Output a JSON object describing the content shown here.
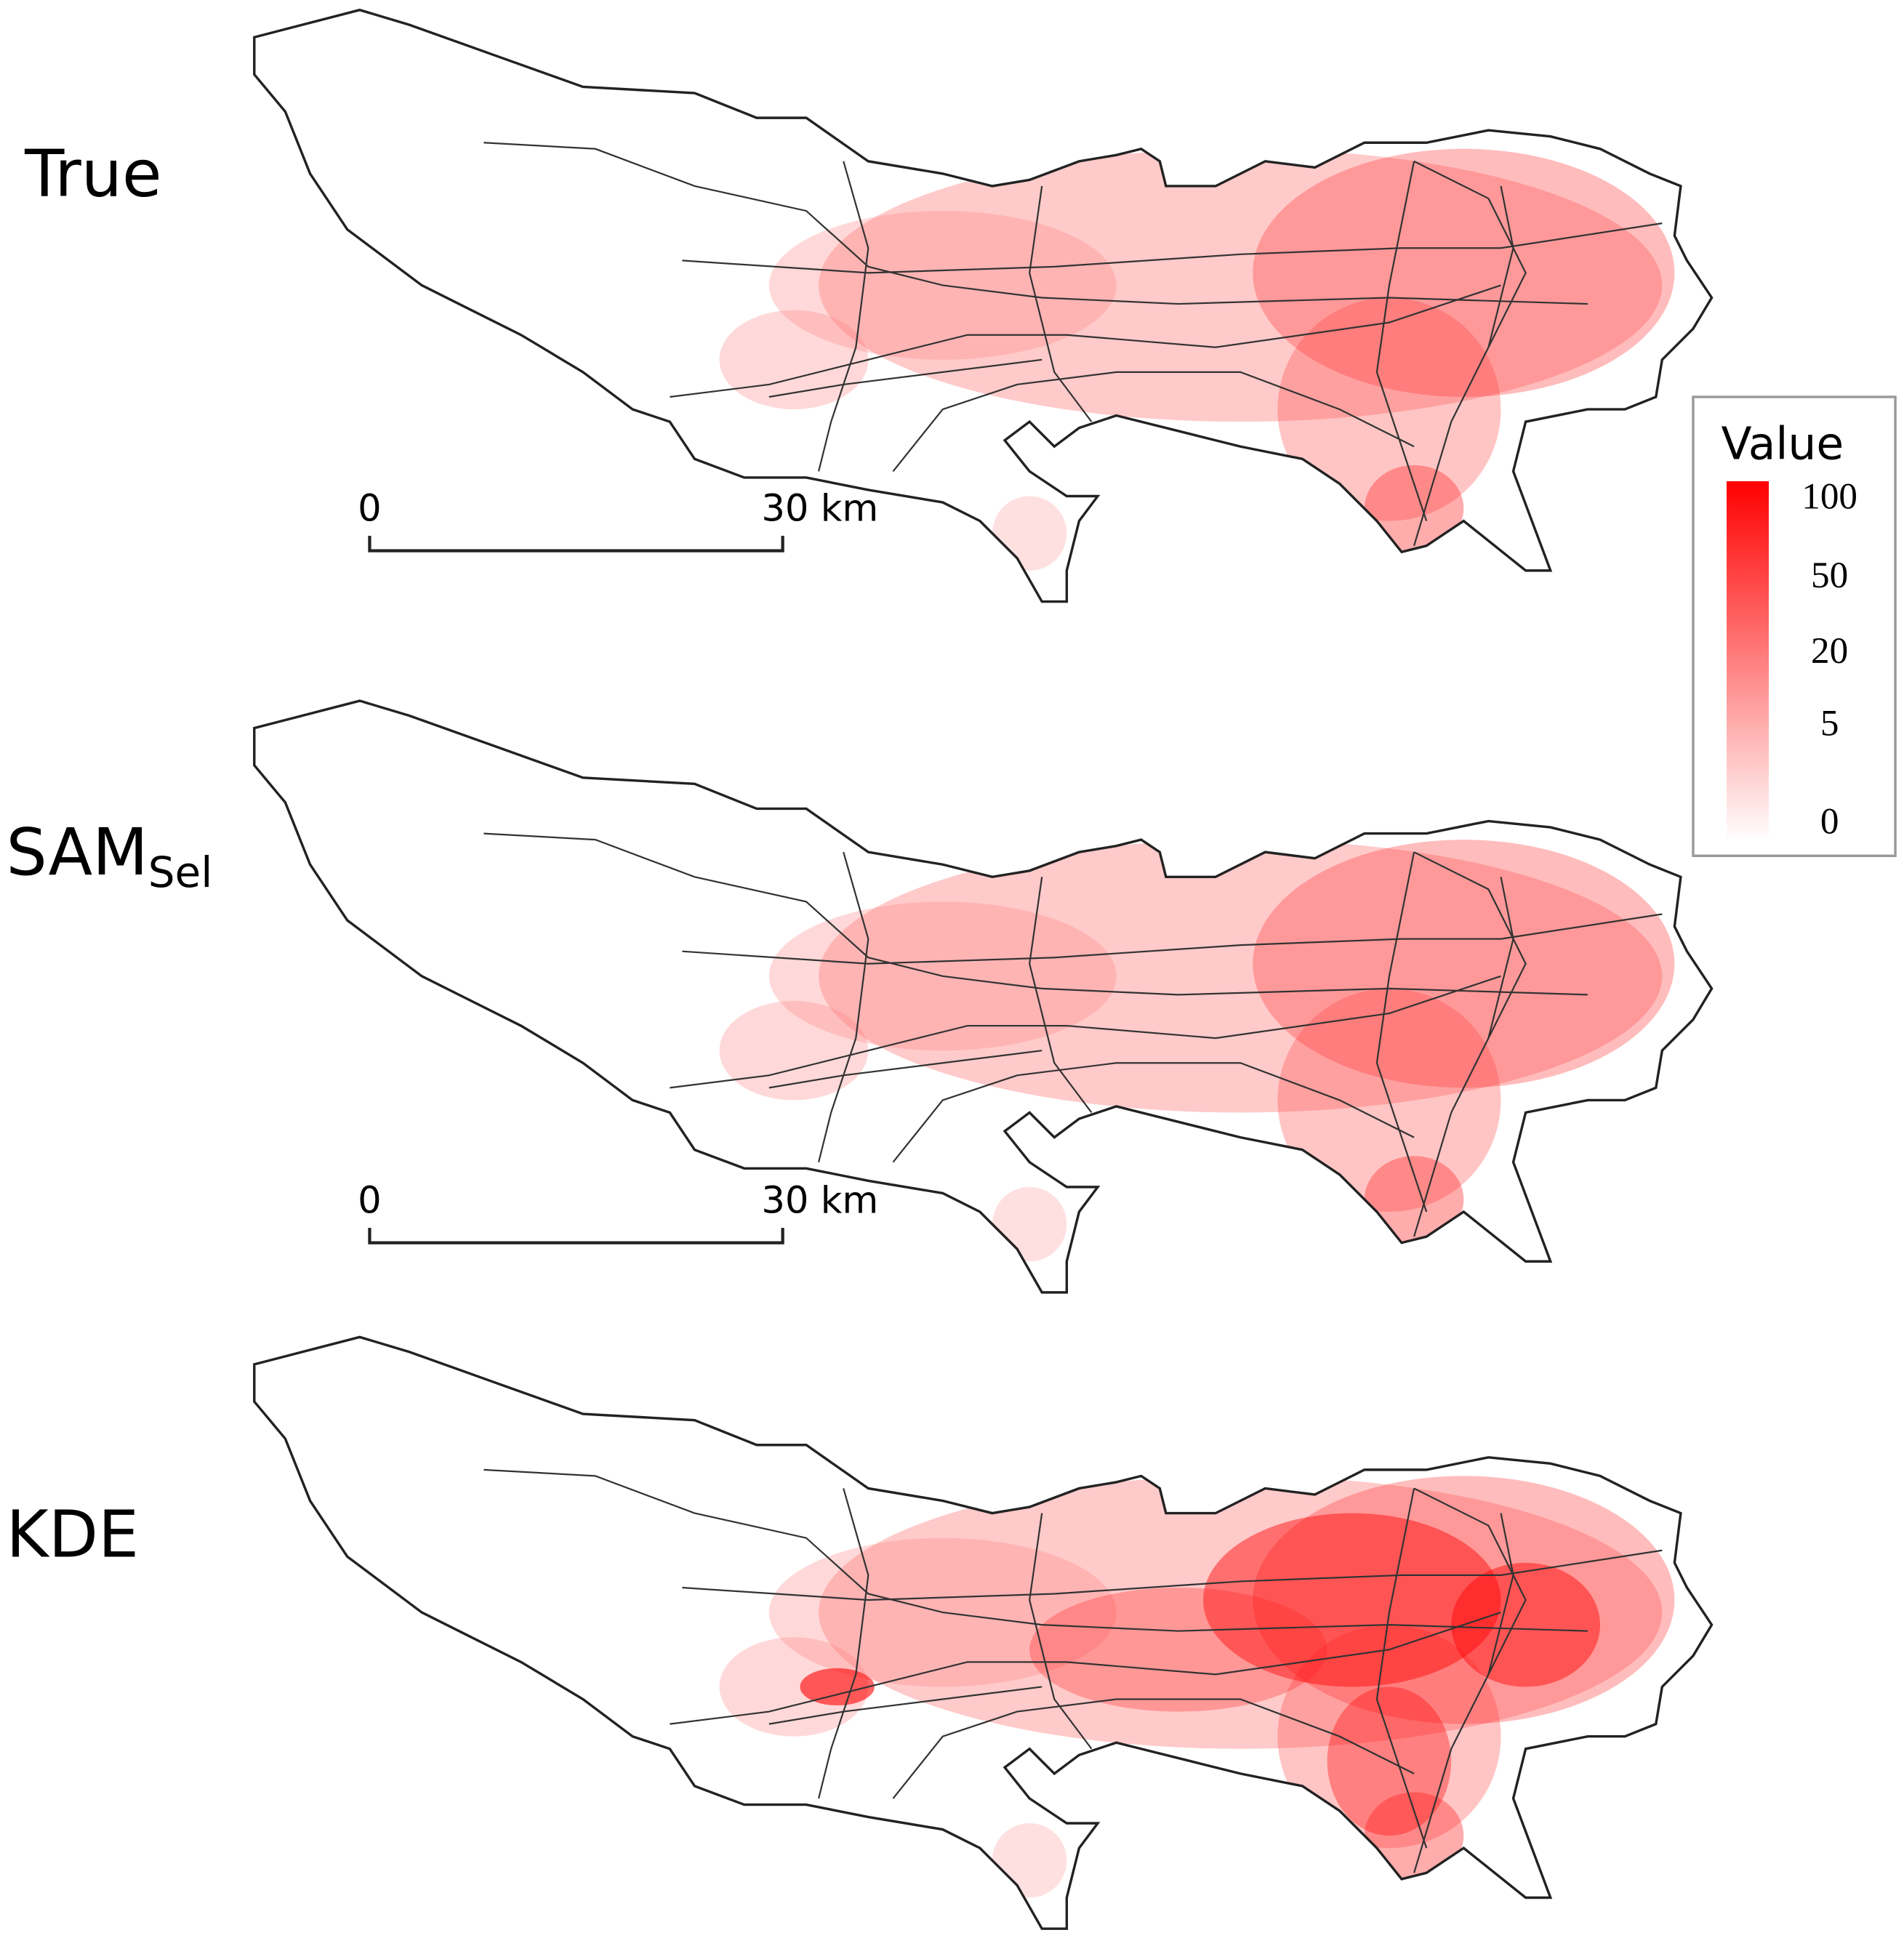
{
  "panels": [
    {
      "label": "True",
      "scale_bar": {
        "start": "0",
        "end": "30 km"
      }
    },
    {
      "label": "SAM",
      "label_subscript": "Sel",
      "scale_bar": {
        "start": "0",
        "end": "30 km"
      }
    },
    {
      "label": "KDE"
    }
  ],
  "legend": {
    "title": "Value",
    "ticks": [
      100,
      50,
      20,
      5,
      0
    ]
  }
}
